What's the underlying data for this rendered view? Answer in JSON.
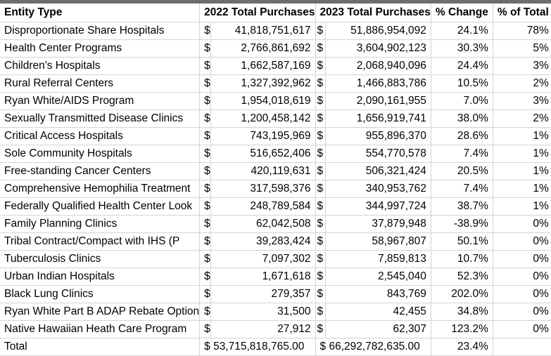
{
  "headers": {
    "entity": "Entity Type",
    "y2022": "2022 Total Purchases",
    "y2023": "2023 Total Purchases",
    "change": "% Change",
    "total": "% of Total"
  },
  "currency_symbol": "$",
  "rows": [
    {
      "entity": "Disproportionate Share Hospitals",
      "y2022": "41,818,751,617",
      "y2023": "51,886,954,092",
      "change": "24.1%",
      "total": "78%"
    },
    {
      "entity": "Health Center Programs",
      "y2022": "2,766,861,692",
      "y2023": "3,604,902,123",
      "change": "30.3%",
      "total": "5%"
    },
    {
      "entity": "Children's Hospitals",
      "y2022": "1,662,587,169",
      "y2023": "2,068,940,096",
      "change": "24.4%",
      "total": "3%"
    },
    {
      "entity": "Rural Referral Centers",
      "y2022": "1,327,392,962",
      "y2023": "1,466,883,786",
      "change": "10.5%",
      "total": "2%"
    },
    {
      "entity": "Ryan White/AIDS Program",
      "y2022": "1,954,018,619",
      "y2023": "2,090,161,955",
      "change": "7.0%",
      "total": "3%"
    },
    {
      "entity": "Sexually Transmitted Disease Clinics",
      "y2022": "1,200,458,142",
      "y2023": "1,656,919,741",
      "change": "38.0%",
      "total": "2%"
    },
    {
      "entity": "Critical Access Hospitals",
      "y2022": "743,195,969",
      "y2023": "955,896,370",
      "change": "28.6%",
      "total": "1%"
    },
    {
      "entity": "Sole Community Hospitals",
      "y2022": "516,652,406",
      "y2023": "554,770,578",
      "change": "7.4%",
      "total": "1%"
    },
    {
      "entity": "Free-standing Cancer Centers",
      "y2022": "420,119,631",
      "y2023": "506,321,424",
      "change": "20.5%",
      "total": "1%"
    },
    {
      "entity": "Comprehensive Hemophilia Treatment",
      "y2022": "317,598,376",
      "y2023": "340,953,762",
      "change": "7.4%",
      "total": "1%"
    },
    {
      "entity": "Federally Qualified Health Center Look",
      "y2022": "248,789,584",
      "y2023": "344,997,724",
      "change": "38.7%",
      "total": "1%"
    },
    {
      "entity": "Family Planning Clinics",
      "y2022": "62,042,508",
      "y2023": "37,879,948",
      "change": "-38.9%",
      "total": "0%"
    },
    {
      "entity": "Tribal Contract/Compact with IHS (P",
      "y2022": "39,283,424",
      "y2023": "58,967,807",
      "change": "50.1%",
      "total": "0%"
    },
    {
      "entity": "Tuberculosis Clinics",
      "y2022": "7,097,302",
      "y2023": "7,859,813",
      "change": "10.7%",
      "total": "0%"
    },
    {
      "entity": "Urban Indian Hospitals",
      "y2022": "1,671,618",
      "y2023": "2,545,040",
      "change": "52.3%",
      "total": "0%"
    },
    {
      "entity": "Black Lung Clinics",
      "y2022": "279,357",
      "y2023": "843,769",
      "change": "202.0%",
      "total": "0%"
    },
    {
      "entity": "Ryan White Part B ADAP Rebate Option",
      "y2022": "31,500",
      "y2023": "42,455",
      "change": "34.8%",
      "total": "0%"
    },
    {
      "entity": "Native Hawaiian Heath Care Program",
      "y2022": "27,912",
      "y2023": "62,307",
      "change": "123.2%",
      "total": "0%"
    }
  ],
  "total_row": {
    "entity": "Total",
    "y2022": "$ 53,715,818,765.00",
    "y2023": "$ 66,292,782,635.00",
    "change": "23.4%",
    "total": ""
  }
}
